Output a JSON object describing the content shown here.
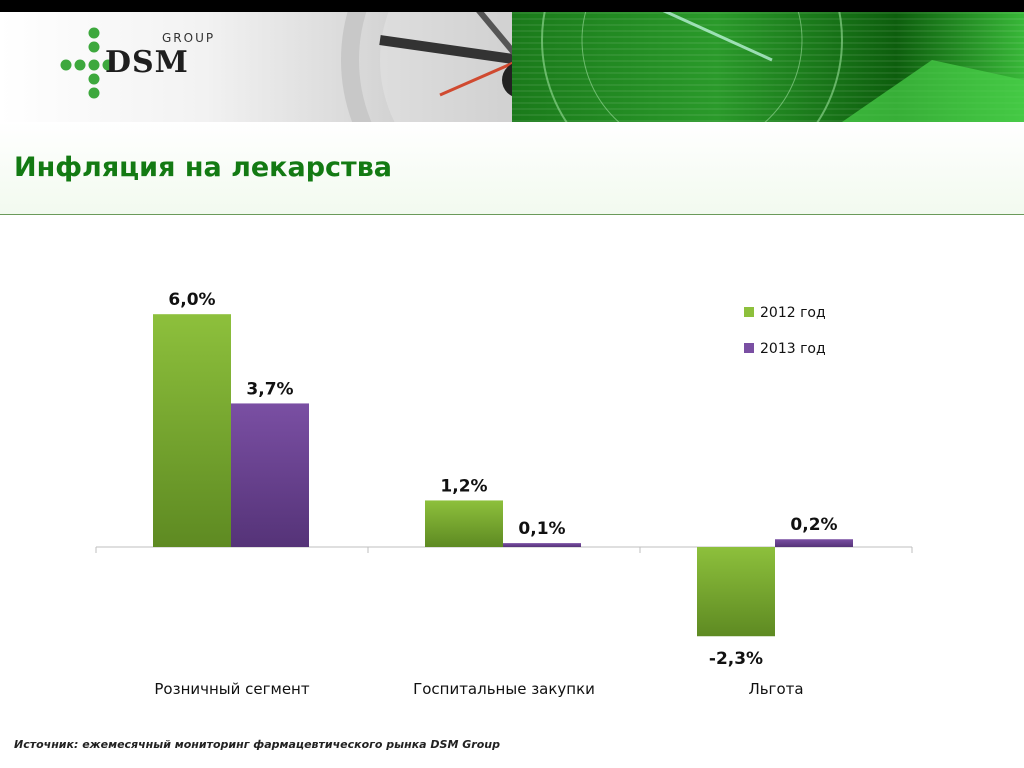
{
  "header": {
    "logo_group": "GROUP",
    "logo_name": "DSM"
  },
  "title": "Инфляция на лекарства",
  "source": "Источник: ежемесячный мониторинг фармацевтического рынка DSM Group",
  "colors": {
    "series_2012": "#8dc03c",
    "series_2013": "#7a4fa3",
    "title": "#137a13"
  },
  "chart_data": {
    "type": "bar",
    "categories": [
      "Розничный сегмент",
      "Госпитальные закупки",
      "Льгота"
    ],
    "series": [
      {
        "name": "2012 год",
        "values": [
          6.0,
          1.2,
          -2.3
        ],
        "labels": [
          "6,0%",
          "1,2%",
          "-2,3%"
        ]
      },
      {
        "name": "2013 год",
        "values": [
          3.7,
          0.1,
          0.2
        ],
        "labels": [
          "3,7%",
          "0,1%",
          "0,2%"
        ]
      }
    ],
    "legend_position": "top-right",
    "grid": false
  }
}
